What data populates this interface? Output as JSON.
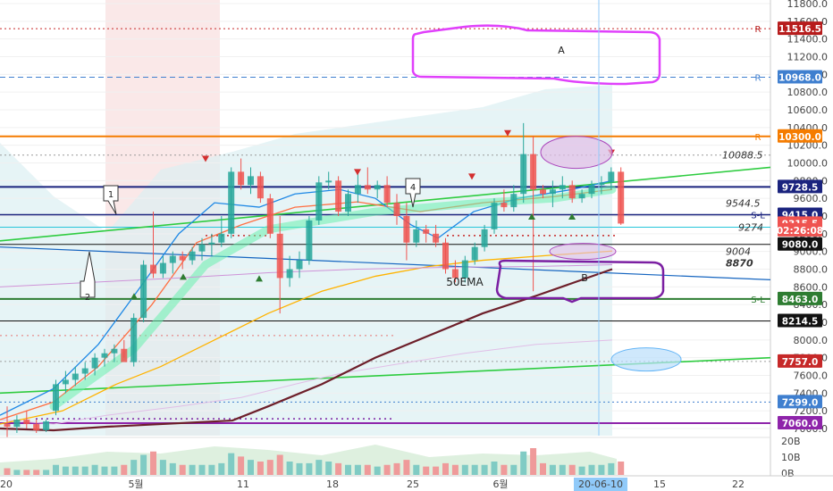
{
  "chart_data": {
    "type": "candlestick",
    "y_axis": {
      "range": [
        6900,
        11900
      ],
      "ticks": [
        "11800.0",
        "11600.0",
        "11400.0",
        "11200.0",
        "11000.0",
        "10800.0",
        "10600.0",
        "10400.0",
        "10200.0",
        "10000.0",
        "9800.0",
        "9600.0",
        "9400.0",
        "9200.0",
        "9000.0",
        "8800.0",
        "8600.0",
        "8400.0",
        "8200.0",
        "8000.0",
        "7800.0",
        "7600.0",
        "7400.0",
        "7200.0",
        "7000.0"
      ]
    },
    "x_axis": {
      "ticks": [
        "20",
        "5월",
        "11",
        "18",
        "25",
        "6월",
        "20-06-10",
        "15",
        "22"
      ],
      "highlighted": "20-06-10"
    },
    "volume_axis": {
      "ticks": [
        "20B",
        "10B",
        "0B"
      ]
    },
    "price_badges": [
      {
        "value": 11516.5,
        "text": "11516.5",
        "color": "#b71c1c",
        "marker": "R"
      },
      {
        "value": 10968.0,
        "text": "10968.0",
        "color": "#3f7fcf",
        "marker": "R"
      },
      {
        "value": 10300.0,
        "text": "10300.0",
        "color": "#f57c00",
        "marker": "R"
      },
      {
        "value": 9728.5,
        "text": "9728.5",
        "color": "#1a237e",
        "marker": ""
      },
      {
        "value": 9415.0,
        "text": "9415.0",
        "color": "#1a237e",
        "marker": "S-L"
      },
      {
        "value": 9315.5,
        "text": "9315.5",
        "color": "#ef5350",
        "marker": ""
      },
      {
        "value": 9240.0,
        "text": "02:26:08",
        "color": "#ef5350",
        "marker": ""
      },
      {
        "value": 9080.0,
        "text": "9080.0",
        "color": "#111111",
        "marker": ""
      },
      {
        "value": 8463.0,
        "text": "8463.0",
        "color": "#2e7d32",
        "marker": "S-L"
      },
      {
        "value": 8214.5,
        "text": "8214.5",
        "color": "#111111",
        "marker": ""
      },
      {
        "value": 7757.0,
        "text": "7757.0",
        "color": "#c62828",
        "marker": ""
      },
      {
        "value": 7299.0,
        "text": "7299.0",
        "color": "#3f7fcf",
        "marker": ""
      },
      {
        "value": 7060.0,
        "text": "7060.0",
        "color": "#8e24aa",
        "marker": ""
      }
    ],
    "level_labels": [
      {
        "value": 10088.5,
        "text": "10088.5"
      },
      {
        "value": 9544.5,
        "text": "9544.5"
      },
      {
        "value": 9274,
        "text": "9274"
      },
      {
        "value": 9004,
        "text": "9004"
      },
      {
        "value": 8870,
        "text": "8870"
      }
    ],
    "annotations": [
      {
        "text": "A"
      },
      {
        "text": "B"
      },
      {
        "text": "50EMA"
      },
      {
        "text": "1"
      },
      {
        "text": "2"
      },
      {
        "text": "4"
      }
    ],
    "candles": [
      {
        "o": 7050,
        "h": 7250,
        "l": 6900,
        "c": 7020
      },
      {
        "o": 7020,
        "h": 7150,
        "l": 6950,
        "c": 7100
      },
      {
        "o": 7100,
        "h": 7200,
        "l": 7000,
        "c": 7050
      },
      {
        "o": 7050,
        "h": 7100,
        "l": 6950,
        "c": 6980
      },
      {
        "o": 6980,
        "h": 7100,
        "l": 6960,
        "c": 7080
      },
      {
        "o": 7200,
        "h": 7550,
        "l": 7150,
        "c": 7500
      },
      {
        "o": 7500,
        "h": 7650,
        "l": 7400,
        "c": 7550
      },
      {
        "o": 7550,
        "h": 7700,
        "l": 7480,
        "c": 7620
      },
      {
        "o": 7620,
        "h": 7750,
        "l": 7550,
        "c": 7680
      },
      {
        "o": 7680,
        "h": 7850,
        "l": 7600,
        "c": 7800
      },
      {
        "o": 7800,
        "h": 7900,
        "l": 7700,
        "c": 7850
      },
      {
        "o": 7850,
        "h": 7950,
        "l": 7750,
        "c": 7900
      },
      {
        "o": 7900,
        "h": 8000,
        "l": 7800,
        "c": 7750
      },
      {
        "o": 7750,
        "h": 8300,
        "l": 7700,
        "c": 8250
      },
      {
        "o": 8250,
        "h": 8900,
        "l": 8200,
        "c": 8850
      },
      {
        "o": 8850,
        "h": 9450,
        "l": 8700,
        "c": 8750
      },
      {
        "o": 8750,
        "h": 8950,
        "l": 8700,
        "c": 8870
      },
      {
        "o": 8870,
        "h": 9000,
        "l": 8750,
        "c": 8950
      },
      {
        "o": 8950,
        "h": 9000,
        "l": 8800,
        "c": 8900
      },
      {
        "o": 8900,
        "h": 9050,
        "l": 8850,
        "c": 9000
      },
      {
        "o": 9000,
        "h": 9150,
        "l": 8900,
        "c": 9080
      },
      {
        "o": 9080,
        "h": 9200,
        "l": 8950,
        "c": 9100
      },
      {
        "o": 9100,
        "h": 9400,
        "l": 9050,
        "c": 9200
      },
      {
        "o": 9200,
        "h": 9950,
        "l": 9150,
        "c": 9900
      },
      {
        "o": 9900,
        "h": 10050,
        "l": 9700,
        "c": 9750
      },
      {
        "o": 9750,
        "h": 9950,
        "l": 9650,
        "c": 9850
      },
      {
        "o": 9850,
        "h": 9900,
        "l": 9550,
        "c": 9600
      },
      {
        "o": 9600,
        "h": 9650,
        "l": 9150,
        "c": 9200
      },
      {
        "o": 9200,
        "h": 9400,
        "l": 8300,
        "c": 8700
      },
      {
        "o": 8700,
        "h": 8950,
        "l": 8600,
        "c": 8800
      },
      {
        "o": 8800,
        "h": 9000,
        "l": 8700,
        "c": 8900
      },
      {
        "o": 8900,
        "h": 9400,
        "l": 8850,
        "c": 9350
      },
      {
        "o": 9350,
        "h": 9850,
        "l": 9300,
        "c": 9780
      },
      {
        "o": 9780,
        "h": 9900,
        "l": 9700,
        "c": 9800
      },
      {
        "o": 9800,
        "h": 9850,
        "l": 9400,
        "c": 9450
      },
      {
        "o": 9450,
        "h": 9700,
        "l": 9400,
        "c": 9650
      },
      {
        "o": 9650,
        "h": 9900,
        "l": 9550,
        "c": 9750
      },
      {
        "o": 9750,
        "h": 9950,
        "l": 9650,
        "c": 9700
      },
      {
        "o": 9700,
        "h": 9800,
        "l": 9600,
        "c": 9750
      },
      {
        "o": 9750,
        "h": 9850,
        "l": 9500,
        "c": 9550
      },
      {
        "o": 9550,
        "h": 9650,
        "l": 9300,
        "c": 9400
      },
      {
        "o": 9400,
        "h": 9550,
        "l": 8900,
        "c": 9100
      },
      {
        "o": 9100,
        "h": 9350,
        "l": 9050,
        "c": 9250
      },
      {
        "o": 9250,
        "h": 9300,
        "l": 9100,
        "c": 9200
      },
      {
        "o": 9200,
        "h": 9300,
        "l": 9050,
        "c": 9100
      },
      {
        "o": 9100,
        "h": 9150,
        "l": 8750,
        "c": 8800
      },
      {
        "o": 8800,
        "h": 8900,
        "l": 8650,
        "c": 8700
      },
      {
        "o": 8700,
        "h": 8950,
        "l": 8650,
        "c": 8900
      },
      {
        "o": 8900,
        "h": 9100,
        "l": 8850,
        "c": 9050
      },
      {
        "o": 9050,
        "h": 9300,
        "l": 9000,
        "c": 9250
      },
      {
        "o": 9250,
        "h": 9600,
        "l": 9200,
        "c": 9550
      },
      {
        "o": 9550,
        "h": 9700,
        "l": 9450,
        "c": 9500
      },
      {
        "o": 9500,
        "h": 9750,
        "l": 9450,
        "c": 9650
      },
      {
        "o": 9650,
        "h": 10450,
        "l": 9550,
        "c": 10100
      },
      {
        "o": 10100,
        "h": 10300,
        "l": 8550,
        "c": 9700
      },
      {
        "o": 9700,
        "h": 9750,
        "l": 9600,
        "c": 9650
      },
      {
        "o": 9650,
        "h": 9800,
        "l": 9500,
        "c": 9700
      },
      {
        "o": 9700,
        "h": 9850,
        "l": 9600,
        "c": 9750
      },
      {
        "o": 9750,
        "h": 9800,
        "l": 9550,
        "c": 9600
      },
      {
        "o": 9600,
        "h": 9700,
        "l": 9550,
        "c": 9650
      },
      {
        "o": 9650,
        "h": 9800,
        "l": 9600,
        "c": 9750
      },
      {
        "o": 9750,
        "h": 9850,
        "l": 9650,
        "c": 9780
      },
      {
        "o": 9780,
        "h": 9950,
        "l": 9700,
        "c": 9900
      },
      {
        "o": 9900,
        "h": 9950,
        "l": 9300,
        "c": 9315
      }
    ],
    "volumes": [
      4,
      3,
      3,
      3,
      3,
      6,
      5,
      5,
      5,
      6,
      5,
      5,
      6,
      9,
      12,
      14,
      9,
      7,
      6,
      6,
      6,
      6,
      7,
      13,
      11,
      9,
      8,
      9,
      12,
      8,
      7,
      7,
      9,
      8,
      7,
      6,
      6,
      6,
      5,
      6,
      7,
      9,
      6,
      5,
      5,
      7,
      6,
      6,
      6,
      6,
      8,
      6,
      6,
      14,
      16,
      7,
      6,
      6,
      6,
      5,
      6,
      6,
      7,
      8
    ]
  }
}
